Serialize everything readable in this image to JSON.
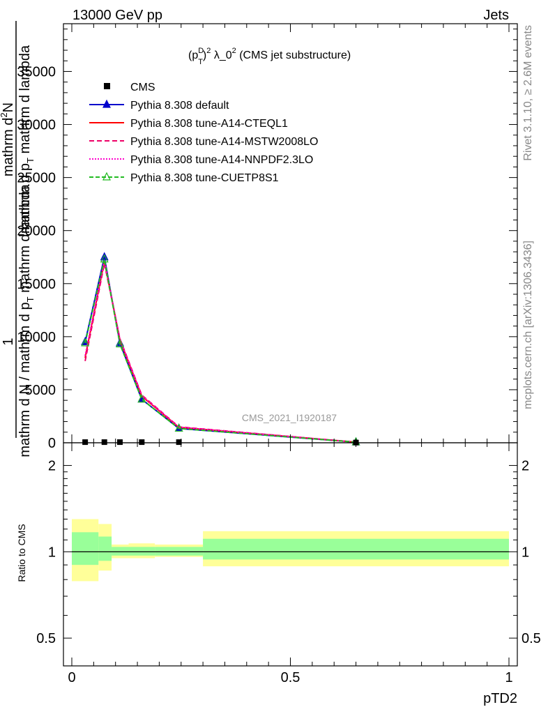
{
  "header": {
    "left": "13000 GeV pp",
    "right": "Jets"
  },
  "side_labels": {
    "rivet": "Rivet 3.1.10, ≥ 2.6M events",
    "mcplots": "mcplots.cern.ch [arXiv:1306.3436]"
  },
  "watermark": "CMS_2021_I1920187",
  "chart_data": [
    {
      "type": "line",
      "title": "(p_T^D)^2 λ_0^2 (CMS jet substructure)",
      "title_parts": {
        "p": "(p",
        "sup_d": "D",
        "sub_t": "T",
        "close": ")",
        "sup_2": "2",
        "rest": " λ_0",
        "sup_2b": "2",
        "suffix": " (CMS jet substructure)"
      },
      "ylabel_lines": [
        "mathrm d N / mathrm d p_T mathrm d lambda",
        "1",
        "mathrm d²N",
        "mathrm d p_T mathrm d lambda"
      ],
      "ylabel_parts": {
        "line1": "1",
        "line2": "mathrm d N / mathrm d p",
        "line2_sub": "T",
        "line2_tail": " mathrm d lambda",
        "line3": "mathrm d",
        "line3_sup": "2",
        "line3_tail": "N",
        "line4": "mathrm d p",
        "line4_sub": "T",
        "line4_tail": " mathrm d lambda"
      },
      "xlim": [
        0,
        1
      ],
      "ylim": [
        0,
        39500
      ],
      "yticks": [
        0,
        5000,
        10000,
        15000,
        20000,
        25000,
        30000,
        35000
      ],
      "ytick_labels": [
        "0",
        "5000",
        "10000",
        "15000",
        "20000",
        "25000",
        "30000",
        "35000"
      ],
      "legend_placement": "top-left",
      "cms": {
        "name": "CMS",
        "x": [
          0.0305,
          0.0745,
          0.11,
          0.16,
          0.245,
          0.65
        ],
        "y": [
          60,
          60,
          60,
          60,
          60,
          20
        ]
      },
      "series": [
        {
          "name": "Pythia 8.308 default",
          "color": "#0000cc",
          "dash": "",
          "marker": "triangle-filled",
          "x": [
            0.0305,
            0.0745,
            0.11,
            0.16,
            0.245,
            0.65
          ],
          "y": [
            9500,
            17500,
            9400,
            4100,
            1350,
            60
          ]
        },
        {
          "name": "Pythia 8.308 tune-A14-CTEQL1",
          "color": "#ff0000",
          "dash": "",
          "marker": "none",
          "x": [
            0.0305,
            0.0745,
            0.11,
            0.16,
            0.245,
            0.65
          ],
          "y": [
            8000,
            17100,
            9700,
            4400,
            1450,
            60
          ]
        },
        {
          "name": "Pythia 8.308 tune-A14-MSTW2008LO",
          "color": "#ee0066",
          "dash": "7,4",
          "marker": "none",
          "x": [
            0.0305,
            0.0745,
            0.11,
            0.16,
            0.245,
            0.65
          ],
          "y": [
            7700,
            16900,
            9800,
            4500,
            1500,
            60
          ]
        },
        {
          "name": "Pythia 8.308 tune-A14-NNPDF2.3LO",
          "color": "#ff00cc",
          "dash": "2,2",
          "marker": "none",
          "x": [
            0.0305,
            0.0745,
            0.11,
            0.16,
            0.245,
            0.65
          ],
          "y": [
            8200,
            17200,
            9750,
            4450,
            1480,
            60
          ]
        },
        {
          "name": "Pythia 8.308 tune-CUETP8S1",
          "color": "#22bb22",
          "dash": "6,3",
          "marker": "triangle-open",
          "x": [
            0.0305,
            0.0745,
            0.11,
            0.16,
            0.245,
            0.65
          ],
          "y": [
            9400,
            17300,
            9300,
            4100,
            1350,
            60
          ]
        }
      ]
    },
    {
      "type": "area",
      "ylabel": "Ratio to CMS",
      "xlabel": "pTD2",
      "xlim": [
        0,
        1
      ],
      "ylim": [
        0.4,
        2.4
      ],
      "log_y": true,
      "yticks": [
        0.5,
        1,
        2
      ],
      "ytick_labels": [
        "0.5",
        "1",
        "2"
      ],
      "xticks": [
        0,
        0.5,
        1
      ],
      "xtick_labels": [
        "0",
        "0.5",
        "1"
      ],
      "bands": [
        {
          "x0": 0.0,
          "x1": 0.061,
          "total": [
            0.79,
            1.3
          ],
          "stat": [
            0.9,
            1.17
          ]
        },
        {
          "x0": 0.061,
          "x1": 0.091,
          "total": [
            0.86,
            1.25
          ],
          "stat": [
            0.93,
            1.13
          ]
        },
        {
          "x0": 0.091,
          "x1": 0.13,
          "total": [
            0.95,
            1.06
          ],
          "stat": [
            0.97,
            1.04
          ]
        },
        {
          "x0": 0.13,
          "x1": 0.19,
          "total": [
            0.95,
            1.07
          ],
          "stat": [
            0.97,
            1.04
          ]
        },
        {
          "x0": 0.19,
          "x1": 0.3,
          "total": [
            0.96,
            1.06
          ],
          "stat": [
            0.97,
            1.04
          ]
        },
        {
          "x0": 0.3,
          "x1": 1.0,
          "total": [
            0.89,
            1.18
          ],
          "stat": [
            0.94,
            1.11
          ]
        }
      ],
      "band_colors": {
        "total": "#ffff99",
        "stat": "#99ff99"
      }
    }
  ]
}
